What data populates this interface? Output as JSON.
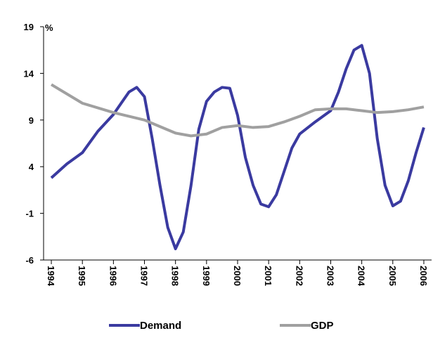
{
  "chart_data": {
    "type": "line",
    "y_label": "%",
    "xlim": [
      1993.75,
      2006.25
    ],
    "xticks": [
      1994,
      1995,
      1996,
      1997,
      1998,
      1999,
      2000,
      2001,
      2002,
      2003,
      2004,
      2005,
      2006
    ],
    "ylim": [
      -6,
      19
    ],
    "yticks": [
      -6,
      -1,
      4,
      9,
      14,
      19
    ],
    "series": [
      {
        "name": "Demand",
        "color": "#3a3aa0",
        "x": [
          1994,
          1994.5,
          1995,
          1995.5,
          1996,
          1996.25,
          1996.5,
          1996.75,
          1997,
          1997.25,
          1997.5,
          1997.75,
          1998,
          1998.25,
          1998.5,
          1998.75,
          1999,
          1999.25,
          1999.5,
          1999.75,
          2000,
          2000.25,
          2000.5,
          2000.75,
          2001,
          2001.25,
          2001.5,
          2001.75,
          2002,
          2002.5,
          2003,
          2003.25,
          2003.5,
          2003.75,
          2004,
          2004.25,
          2004.5,
          2004.75,
          2005,
          2005.25,
          2005.5,
          2005.75,
          2006
        ],
        "values": [
          2.8,
          4.3,
          5.5,
          7.8,
          9.6,
          10.8,
          12,
          12.5,
          11.5,
          7,
          2,
          -2.5,
          -4.8,
          -3,
          2,
          8,
          11,
          12,
          12.5,
          12.4,
          9.5,
          5,
          2,
          0,
          -0.3,
          1,
          3.5,
          6,
          7.5,
          8.8,
          10,
          12,
          14.5,
          16.5,
          17,
          14,
          7,
          2,
          -0.2,
          0.3,
          2.5,
          5.5,
          8.2
        ]
      },
      {
        "name": "GDP",
        "color": "#a0a0a0",
        "x": [
          1994,
          1995,
          1996,
          1997,
          1997.5,
          1998,
          1998.5,
          1999,
          1999.5,
          2000,
          2000.5,
          2001,
          2001.5,
          2002,
          2002.5,
          2003,
          2003.5,
          2004,
          2004.5,
          2005,
          2005.5,
          2006
        ],
        "values": [
          12.8,
          10.8,
          9.8,
          9.0,
          8.3,
          7.6,
          7.3,
          7.5,
          8.2,
          8.4,
          8.2,
          8.3,
          8.8,
          9.4,
          10.1,
          10.2,
          10.2,
          10.0,
          9.8,
          9.9,
          10.1,
          10.4
        ]
      }
    ]
  }
}
